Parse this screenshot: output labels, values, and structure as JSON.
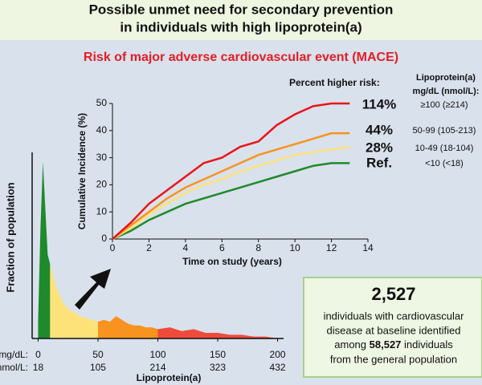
{
  "header": {
    "title_lines": [
      "Possible unmet need for secondary prevention",
      "in individuals with high lipoprotein(a)"
    ]
  },
  "chart_data": [
    {
      "type": "line",
      "title": "Risk of major adverse cardiovascular event (MACE)",
      "x_label": "Time on study (years)",
      "y_label": "Cumulative Incidence (%)",
      "xlim": [
        0,
        14
      ],
      "xticks": [
        0,
        2,
        4,
        6,
        8,
        10,
        12,
        14
      ],
      "ylim": [
        0,
        50
      ],
      "yticks": [
        0,
        10,
        20,
        30,
        40,
        50
      ],
      "risk_heading": "Percent higher risk:",
      "legend_title": [
        "Lipoprotein(a)",
        "mg/dL (nmol/L):"
      ],
      "series": [
        {
          "name": "≥100 (≥214)",
          "risk_label": "114%",
          "color": "#e8151b",
          "x": [
            0,
            1,
            2,
            3,
            4,
            5,
            6,
            7,
            8,
            9,
            10,
            11,
            12,
            13
          ],
          "values": [
            0,
            6,
            13,
            18,
            23,
            28,
            30,
            34,
            36,
            42,
            46,
            49,
            50,
            50
          ]
        },
        {
          "name": "50-99 (105-213)",
          "risk_label": "44%",
          "color": "#f7931e",
          "x": [
            0,
            1,
            2,
            3,
            4,
            5,
            6,
            7,
            8,
            9,
            10,
            11,
            12,
            13
          ],
          "values": [
            0,
            5,
            10,
            15,
            19,
            22,
            25,
            28,
            31,
            33,
            35,
            37,
            39,
            39
          ]
        },
        {
          "name": "10-49 (18-104)",
          "risk_label": "28%",
          "color": "#fde27a",
          "x": [
            0,
            1,
            2,
            3,
            4,
            5,
            6,
            7,
            8,
            9,
            10,
            11,
            12,
            13
          ],
          "values": [
            0,
            4,
            9,
            13,
            17,
            20,
            22,
            25,
            27,
            29,
            31,
            32,
            33,
            34
          ]
        },
        {
          "name": "<10 (<18)",
          "risk_label": "Ref.",
          "color": "#1e8a2b",
          "x": [
            0,
            1,
            2,
            3,
            4,
            5,
            6,
            7,
            8,
            9,
            10,
            11,
            12,
            13
          ],
          "values": [
            0,
            3,
            7,
            10,
            13,
            15,
            17,
            19,
            21,
            23,
            25,
            27,
            28,
            28
          ]
        }
      ]
    },
    {
      "type": "area",
      "y_label": "Fraction of population",
      "x_label": "Lipoprotein(a)",
      "x_unit_labels": [
        "mg/dL:",
        "nmol/L:"
      ],
      "xlim": [
        -5,
        205
      ],
      "xticks": [
        0,
        50,
        100,
        150,
        200
      ],
      "xticks_nmol": [
        18,
        105,
        214,
        323,
        432
      ],
      "ylim": [
        0,
        100
      ],
      "series": [
        {
          "color": "#1e8a2b",
          "x": [
            0,
            2,
            4,
            6,
            8,
            10
          ],
          "values": [
            10,
            60,
            95,
            70,
            45,
            40
          ]
        },
        {
          "color": "#fde27a",
          "x": [
            10,
            15,
            20,
            25,
            30,
            35,
            40,
            45,
            50
          ],
          "values": [
            40,
            28,
            20,
            16,
            14,
            12,
            11,
            10,
            9
          ]
        },
        {
          "color": "#f7931e",
          "x": [
            50,
            55,
            60,
            65,
            70,
            75,
            80,
            85,
            90,
            95,
            100
          ],
          "values": [
            9,
            10,
            9,
            12,
            10,
            8,
            7,
            7,
            6,
            6,
            5
          ]
        },
        {
          "color": "#ef4b3a",
          "x": [
            100,
            110,
            120,
            130,
            140,
            150,
            160,
            170,
            180,
            190,
            200
          ],
          "values": [
            5,
            6,
            4,
            5,
            3,
            3,
            2,
            2,
            1,
            1,
            0
          ]
        }
      ]
    }
  ],
  "info_box": {
    "number": "2,527",
    "lines": [
      "individuals with cardiovascular",
      "disease at baseline identified",
      "among ",
      "58,527",
      " individuals",
      "from the general population"
    ]
  }
}
